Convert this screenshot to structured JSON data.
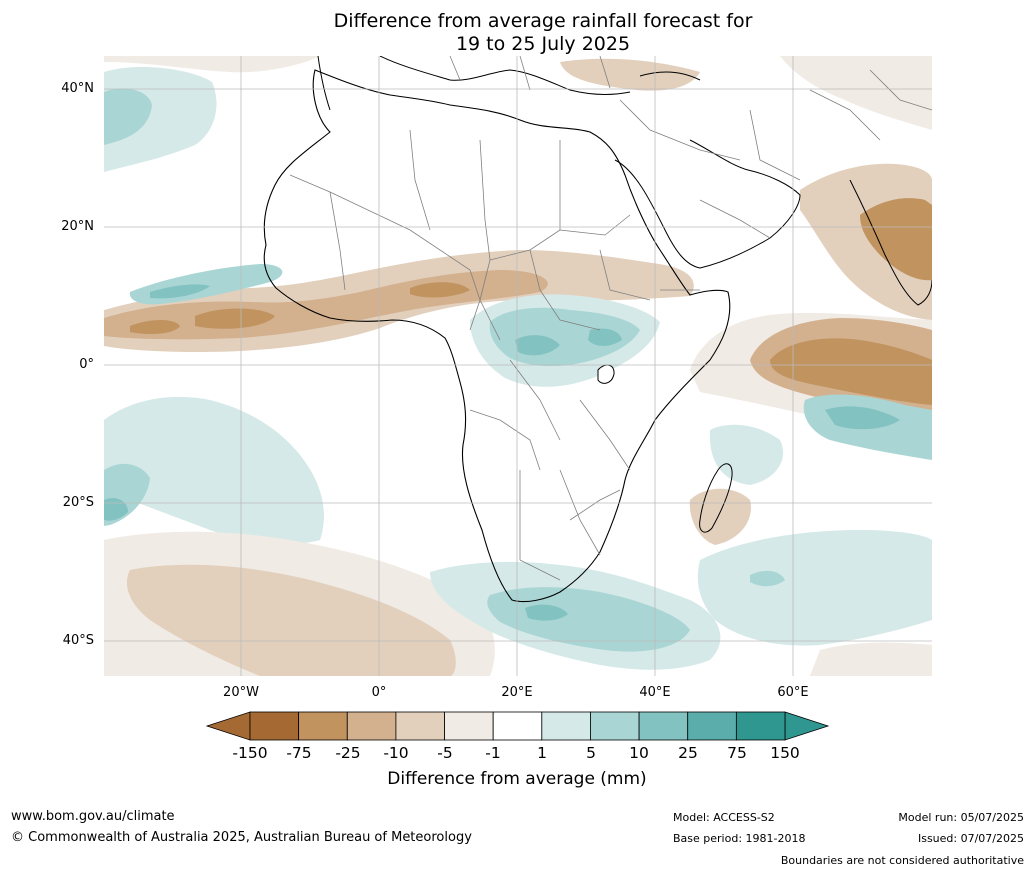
{
  "title": {
    "line1": "Difference from average rainfall forecast for",
    "line2": "19 to 25 July 2025"
  },
  "map": {
    "lat_labels": [
      "40°N",
      "20°N",
      "0°",
      "20°S",
      "40°S"
    ],
    "lon_labels": [
      "20°W",
      "0°",
      "20°E",
      "40°E",
      "60°E"
    ],
    "colors": {
      "minus150": "#a56a33",
      "minus75": "#c0935f",
      "minus25": "#d3b08e",
      "minus10": "#e2d0bd",
      "minus5": "#f0ebe4",
      "neutral": "#ffffff",
      "plus1": "#d5e9e8",
      "plus5": "#a9d6d4",
      "plus10": "#82c2c0",
      "plus25": "#5aadaa",
      "plus75": "#2f9690",
      "coast": "#000000",
      "borders": "#808080",
      "grid": "#bbbbbb"
    }
  },
  "colorbar": {
    "title": "Difference from average (mm)",
    "tick_labels": [
      "-150",
      "-75",
      "-25",
      "-10",
      "-5",
      "-1",
      "1",
      "5",
      "10",
      "25",
      "75",
      "150"
    ],
    "colors": [
      "#a56a33",
      "#c0935f",
      "#d3b08e",
      "#e2d0bd",
      "#f0ebe4",
      "#ffffff",
      "#d5e9e8",
      "#a9d6d4",
      "#82c2c0",
      "#5aadaa",
      "#2f9690"
    ]
  },
  "footer": {
    "website": "www.bom.gov.au/climate",
    "copyright": "© Commonwealth of Australia 2025, Australian Bureau of Meteorology",
    "model": "Model: ACCESS-S2",
    "base_period": "Base period: 1981-2018",
    "model_run": "Model run: 05/07/2025",
    "issued": "Issued: 07/07/2025",
    "disclaimer": "Boundaries are not considered authoritative"
  }
}
